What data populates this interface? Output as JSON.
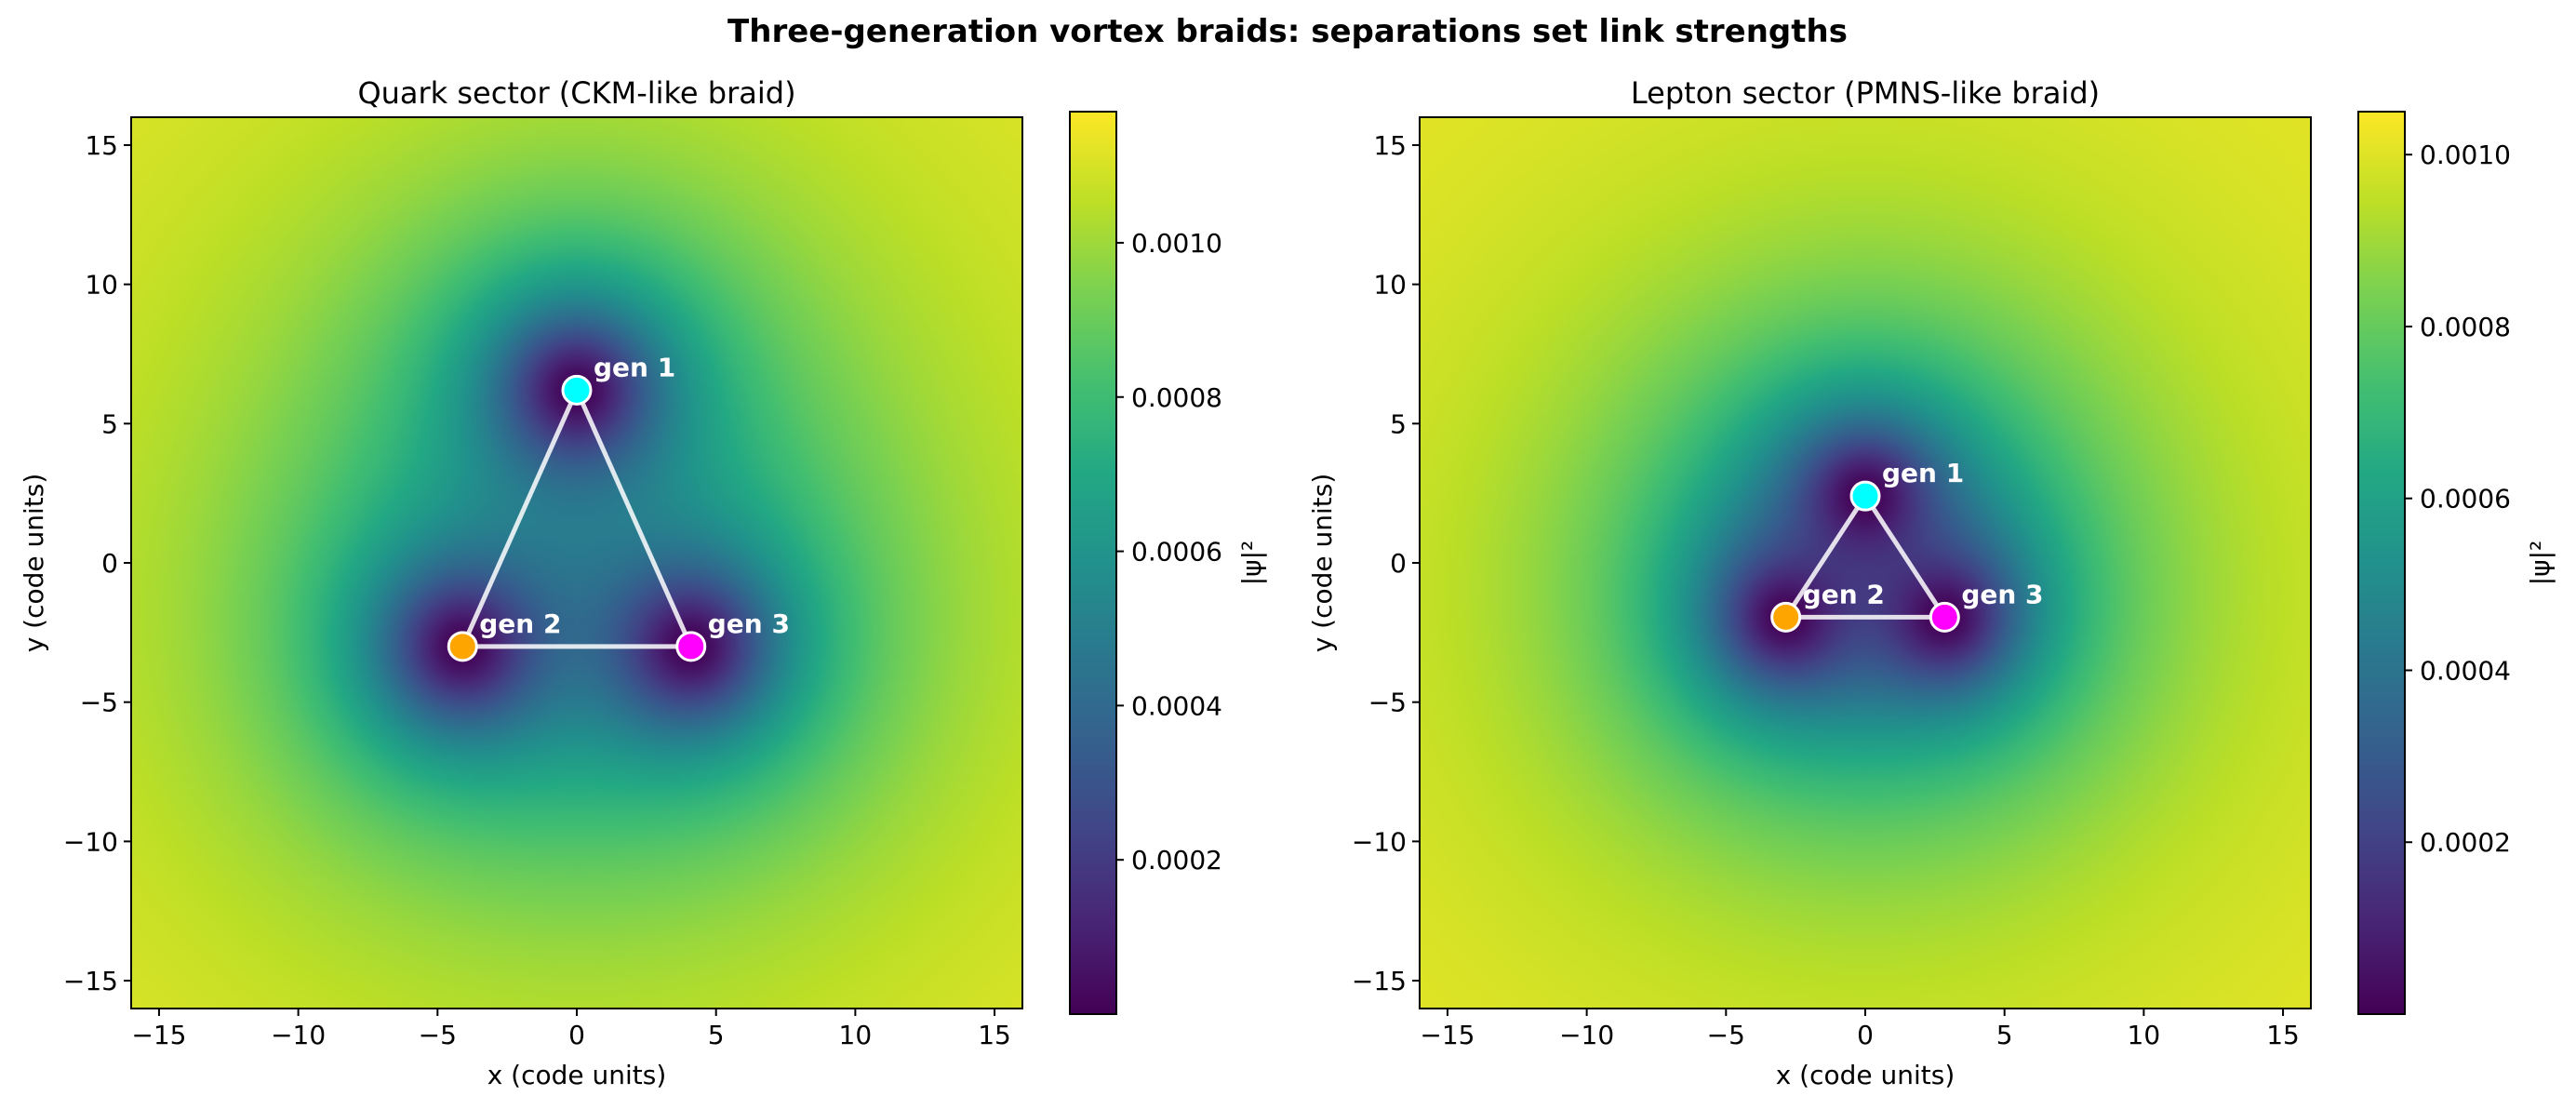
{
  "figure": {
    "title": "Three-generation vortex braids: separations set link strengths"
  },
  "chart_data": [
    {
      "type": "heatmap",
      "title": "Quark sector (CKM-like braid)",
      "xlabel": "x  (code units)",
      "ylabel": "y  (code units)",
      "xlim": [
        -16,
        16
      ],
      "ylim": [
        -16,
        16
      ],
      "x_ticks": [
        -15,
        -10,
        -5,
        0,
        5,
        10,
        15
      ],
      "y_ticks": [
        -15,
        -10,
        -5,
        0,
        5,
        10,
        15
      ],
      "colormap": "viridis",
      "colorbar": {
        "label": "|ψ|²",
        "range": [
          0.0,
          0.00117
        ],
        "ticks": [
          0.0002,
          0.0004,
          0.0006,
          0.0008,
          0.001
        ],
        "tick_labels": [
          "0.0002",
          "0.0004",
          "0.0006",
          "0.0008",
          "0.0010"
        ]
      },
      "vortices": [
        {
          "name": "gen 1",
          "x": 0.0,
          "y": 6.2,
          "color": "#00ffff"
        },
        {
          "name": "gen 2",
          "x": -4.1,
          "y": -3.0,
          "color": "#ffa500"
        },
        {
          "name": "gen 3",
          "x": 4.1,
          "y": -3.0,
          "color": "#ff00ff"
        }
      ],
      "field_scale": 3.2,
      "field_max": 0.00117
    },
    {
      "type": "heatmap",
      "title": "Lepton sector (PMNS-like braid)",
      "xlabel": "x  (code units)",
      "ylabel": "y  (code units)",
      "xlim": [
        -16,
        16
      ],
      "ylim": [
        -16,
        16
      ],
      "x_ticks": [
        -15,
        -10,
        -5,
        0,
        5,
        10,
        15
      ],
      "y_ticks": [
        -15,
        -10,
        -5,
        0,
        5,
        10,
        15
      ],
      "colormap": "viridis",
      "colorbar": {
        "label": "|ψ|²",
        "range": [
          0.0,
          0.00105
        ],
        "ticks": [
          0.0002,
          0.0004,
          0.0006,
          0.0008,
          0.001
        ],
        "tick_labels": [
          "0.0002",
          "0.0004",
          "0.0006",
          "0.0008",
          "0.0010"
        ]
      },
      "vortices": [
        {
          "name": "gen 1",
          "x": 0.0,
          "y": 2.4,
          "color": "#00ffff"
        },
        {
          "name": "gen 2",
          "x": -2.85,
          "y": -1.95,
          "color": "#ffa500"
        },
        {
          "name": "gen 3",
          "x": 2.85,
          "y": -1.95,
          "color": "#ff00ff"
        }
      ],
      "field_scale": 2.8,
      "field_max": 0.00105
    }
  ]
}
